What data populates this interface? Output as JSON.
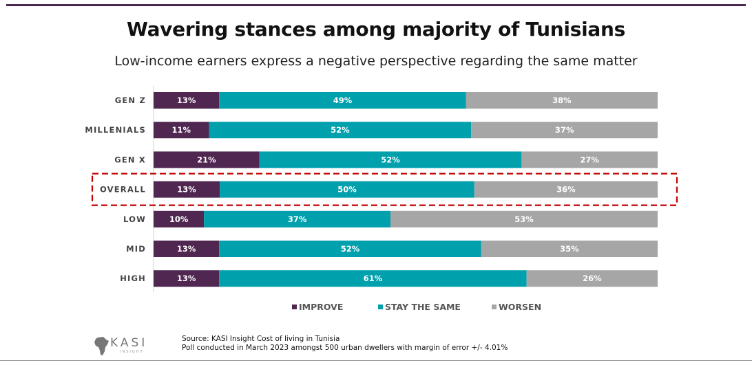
{
  "header": {
    "title": "Wavering stances among majority of Tunisians",
    "subtitle": "Low-income earners express a negative perspective regarding the same matter"
  },
  "colors": {
    "improve": "#4f2751",
    "stay": "#00a0ad",
    "worsen": "#a6a6a6",
    "highlight": "#c00000",
    "top_bar": "#4a2a4e"
  },
  "chart_data": {
    "type": "bar",
    "orientation": "horizontal",
    "stacked": true,
    "normalized": true,
    "title": "Wavering stances among majority of Tunisians",
    "subtitle": "Low-income earners express a negative perspective regarding the same matter",
    "categories": [
      "GEN Z",
      "MILLENIALS",
      "GEN X",
      "OVERALL",
      "LOW",
      "MID",
      "HIGH"
    ],
    "highlighted_category": "OVERALL",
    "series": [
      {
        "name": "IMPROVE",
        "values": [
          13,
          11,
          21,
          13,
          10,
          13,
          13
        ],
        "labels": [
          "13%",
          "11%",
          "21%",
          "13%",
          "10%",
          "13%",
          "13%"
        ]
      },
      {
        "name": "STAY THE SAME",
        "values": [
          49,
          52,
          52,
          50,
          37,
          52,
          61
        ],
        "labels": [
          "49%",
          "52%",
          "52%",
          "50%",
          "37%",
          "52%",
          "61%"
        ]
      },
      {
        "name": "WORSEN",
        "values": [
          38,
          37,
          27,
          36,
          53,
          35,
          26
        ],
        "labels": [
          "38%",
          "37%",
          "27%",
          "36%",
          "53%",
          "35%",
          "26%"
        ]
      }
    ],
    "legend_position": "bottom",
    "xlabel": "",
    "ylabel": ""
  },
  "footer": {
    "source_line1": "Source: KASI Insight Cost of living in Tunisia",
    "source_line2": "Poll conducted in March 2023 amongst 500 urban dwellers with margin of error +/- 4.01%",
    "logo_text": "KASI",
    "logo_subtext": "INSIGHT"
  }
}
